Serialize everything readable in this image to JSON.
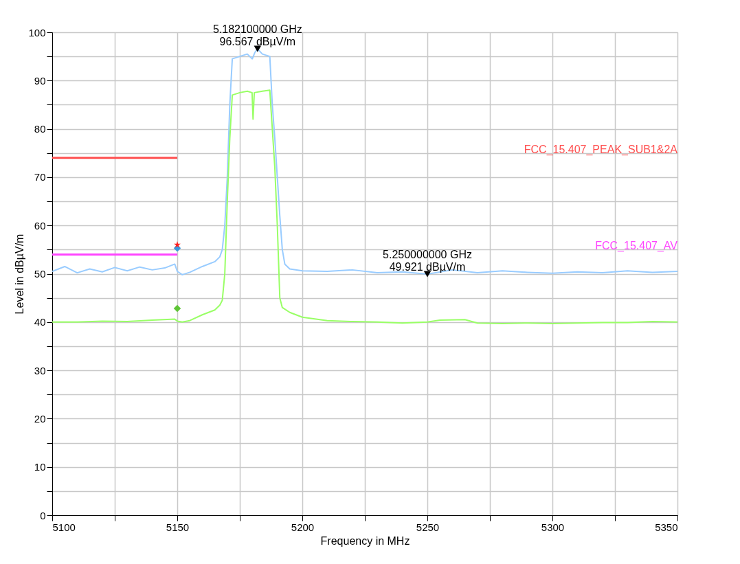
{
  "chart_data": {
    "type": "line",
    "xlabel": "Frequency in MHz",
    "ylabel": "Level in dBµV/m",
    "xlim": [
      5100,
      5350
    ],
    "ylim": [
      0,
      100
    ],
    "xticks": [
      5100,
      {
        "value": 5125,
        "label": null
      },
      5150,
      {
        "value": 5175,
        "label": null
      },
      5200,
      {
        "value": 5225,
        "label": null
      },
      5250,
      {
        "value": 5275,
        "label": null
      },
      5300,
      {
        "value": 5325,
        "label": null
      },
      5350
    ],
    "yticks": [
      0,
      {
        "value": 5,
        "label": null
      },
      10,
      {
        "value": 15,
        "label": null
      },
      20,
      {
        "value": 25,
        "label": null
      },
      30,
      {
        "value": 35,
        "label": null
      },
      40,
      {
        "value": 45,
        "label": null
      },
      50,
      {
        "value": 55,
        "label": null
      },
      60,
      {
        "value": 65,
        "label": null
      },
      70,
      {
        "value": 75,
        "label": null
      },
      80,
      {
        "value": 85,
        "label": null
      },
      90,
      {
        "value": 95,
        "label": null
      },
      100
    ],
    "grid": true,
    "line_style": "solid",
    "series": [
      {
        "type": "line",
        "color": "#99ccff",
        "x": [
          5100,
          5105,
          5110,
          5115,
          5120,
          5125,
          5130,
          5135,
          5140,
          5145,
          5149,
          5150,
          5152,
          5155,
          5160,
          5165,
          5167,
          5168,
          5169,
          5170,
          5171,
          5172,
          5175,
          5178,
          5180,
          5181,
          5182.1,
          5184,
          5187,
          5188,
          5189,
          5190,
          5191,
          5192,
          5193,
          5195,
          5200,
          5210,
          5220,
          5230,
          5240,
          5250,
          5260,
          5270,
          5280,
          5290,
          5300,
          5310,
          5320,
          5330,
          5340,
          5350
        ],
        "values": [
          50.5,
          51.5,
          50.2,
          51,
          50.4,
          51.3,
          50.6,
          51.4,
          50.8,
          51.2,
          52,
          50.5,
          49.8,
          50.3,
          51.5,
          52.5,
          53.5,
          55,
          60,
          70,
          85,
          94.5,
          95,
          95.5,
          94.5,
          95.8,
          96.567,
          95.5,
          95,
          85,
          78,
          70,
          62,
          55,
          52,
          51,
          50.6,
          50.5,
          50.8,
          50.2,
          50.4,
          49.921,
          50.8,
          50.2,
          50.6,
          50.3,
          50.1,
          50.4,
          50.2,
          50.6,
          50.3,
          50.5
        ]
      },
      {
        "type": "line",
        "color": "#99ff66",
        "x": [
          5100,
          5110,
          5120,
          5130,
          5140,
          5149,
          5150,
          5152,
          5155,
          5160,
          5165,
          5167,
          5168,
          5169,
          5170,
          5171,
          5172,
          5175,
          5178,
          5179.9,
          5180.3,
          5180.8,
          5184,
          5187,
          5188,
          5189,
          5190,
          5191,
          5192,
          5195,
          5200,
          5210,
          5220,
          5230,
          5240,
          5250,
          5255,
          5265,
          5270,
          5280,
          5290,
          5300,
          5310,
          5320,
          5330,
          5340,
          5350
        ],
        "values": [
          40,
          40,
          40.2,
          40.1,
          40.4,
          40.6,
          40.2,
          40,
          40.3,
          41.5,
          42.5,
          43.5,
          44.5,
          50,
          65,
          78,
          87,
          87.5,
          87.8,
          87.5,
          82,
          87.5,
          87.8,
          88,
          80,
          72,
          60,
          45,
          43,
          42,
          41,
          40.3,
          40.1,
          40,
          39.8,
          40,
          40.4,
          40.5,
          39.8,
          39.7,
          39.8,
          39.7,
          39.8,
          39.9,
          39.9,
          40.1,
          40
        ]
      },
      {
        "type": "line",
        "name": "FCC_15.407_PEAK_SUB1&2A",
        "color": "#ff4f4f",
        "x": [
          5100,
          5150
        ],
        "values": [
          74,
          74
        ]
      },
      {
        "type": "line",
        "name": "FCC_15.407_AV",
        "color": "#ff44ff",
        "x": [
          5100,
          5150
        ],
        "values": [
          54,
          54
        ]
      },
      {
        "type": "scatter",
        "marker": "diamond",
        "color": "#3d98dd",
        "x": [
          5150
        ],
        "values": [
          55.3
        ]
      },
      {
        "type": "scatter",
        "marker": "star",
        "color": "#ff2020",
        "x": [
          5150
        ],
        "values": [
          56
        ]
      },
      {
        "type": "scatter",
        "marker": "diamond",
        "color": "#5ec536",
        "x": [
          5150
        ],
        "values": [
          42.8
        ]
      },
      {
        "type": "scatter",
        "marker": "triangle",
        "color": "#000000",
        "x": [
          5182.1,
          5250
        ],
        "values": [
          96.567,
          49.921
        ]
      }
    ],
    "annotations": [
      {
        "text": "5.182100000 GHz\n96.567 dBµV/m",
        "x": 5182.1,
        "y": 96.567
      },
      {
        "text": "5.250000000 GHz\n49.921 dBµV/m",
        "x": 5250,
        "y": 49.921
      }
    ]
  }
}
